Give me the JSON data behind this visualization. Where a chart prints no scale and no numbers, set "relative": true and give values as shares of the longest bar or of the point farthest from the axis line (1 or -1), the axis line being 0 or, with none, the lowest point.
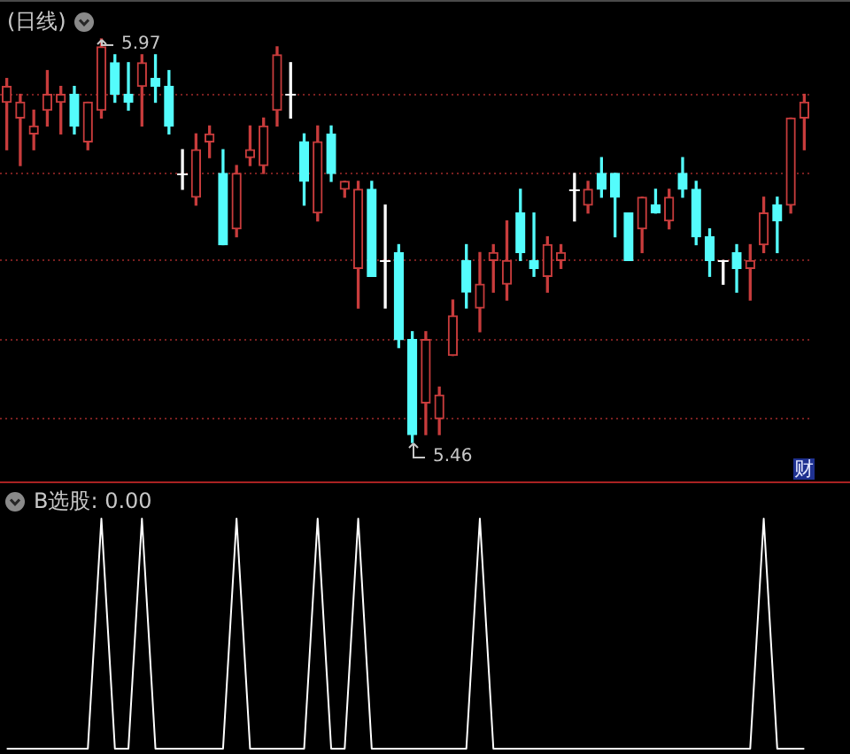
{
  "chart_data": [
    {
      "type": "candlestick",
      "title": "(日线)",
      "categories": [
        null,
        null,
        null,
        null,
        null,
        null,
        null,
        null,
        null,
        null,
        null,
        null,
        null,
        null,
        null,
        null,
        null,
        null,
        null,
        null,
        null,
        null,
        null,
        null,
        null,
        null,
        null,
        null,
        null,
        null,
        null,
        null,
        null,
        null,
        null,
        null,
        null,
        null,
        null,
        null,
        null,
        null,
        null,
        null,
        null,
        null,
        null,
        null,
        null,
        null,
        null,
        null,
        null,
        null,
        null,
        null,
        null,
        null,
        null,
        null
      ],
      "ohlc": [
        [
          5.89,
          5.92,
          5.83,
          5.91
        ],
        [
          5.87,
          5.9,
          5.81,
          5.89
        ],
        [
          5.85,
          5.88,
          5.83,
          5.86
        ],
        [
          5.88,
          5.93,
          5.86,
          5.9
        ],
        [
          5.89,
          5.91,
          5.85,
          5.9
        ],
        [
          5.9,
          5.91,
          5.85,
          5.86
        ],
        [
          5.84,
          5.89,
          5.83,
          5.89
        ],
        [
          5.88,
          5.97,
          5.87,
          5.96
        ],
        [
          5.94,
          5.95,
          5.89,
          5.9
        ],
        [
          5.9,
          5.94,
          5.88,
          5.89
        ],
        [
          5.91,
          5.95,
          5.86,
          5.94
        ],
        [
          5.92,
          5.95,
          5.89,
          5.91
        ],
        [
          5.91,
          5.93,
          5.85,
          5.86
        ],
        [
          5.8,
          5.83,
          5.78,
          5.8
        ],
        [
          5.77,
          5.85,
          5.76,
          5.83
        ],
        [
          5.84,
          5.86,
          5.82,
          5.85
        ],
        [
          5.8,
          5.83,
          5.71,
          5.71
        ],
        [
          5.73,
          5.81,
          5.72,
          5.8
        ],
        [
          5.82,
          5.86,
          5.81,
          5.83
        ],
        [
          5.81,
          5.87,
          5.8,
          5.86
        ],
        [
          5.88,
          5.96,
          5.86,
          5.95
        ],
        [
          5.9,
          5.94,
          5.87,
          5.9
        ],
        [
          5.84,
          5.85,
          5.76,
          5.79
        ],
        [
          5.75,
          5.86,
          5.74,
          5.84
        ],
        [
          5.85,
          5.86,
          5.79,
          5.8
        ],
        [
          5.78,
          5.79,
          5.77,
          5.79
        ],
        [
          5.68,
          5.79,
          5.63,
          5.78
        ],
        [
          5.78,
          5.79,
          5.67,
          5.67
        ],
        [
          5.69,
          5.76,
          5.63,
          5.69
        ],
        [
          5.7,
          5.71,
          5.58,
          5.59
        ],
        [
          5.59,
          5.6,
          5.46,
          5.47
        ],
        [
          5.51,
          5.6,
          5.47,
          5.59
        ],
        [
          5.49,
          5.53,
          5.47,
          5.52
        ],
        [
          5.57,
          5.64,
          5.57,
          5.62
        ],
        [
          5.69,
          5.71,
          5.63,
          5.65
        ],
        [
          5.63,
          5.7,
          5.6,
          5.66
        ],
        [
          5.69,
          5.71,
          5.65,
          5.7
        ],
        [
          5.66,
          5.74,
          5.64,
          5.69
        ],
        [
          5.75,
          5.78,
          5.69,
          5.7
        ],
        [
          5.69,
          5.75,
          5.67,
          5.68
        ],
        [
          5.67,
          5.72,
          5.65,
          5.71
        ],
        [
          5.69,
          5.71,
          5.68,
          5.7
        ],
        [
          5.78,
          5.8,
          5.74,
          5.78
        ],
        [
          5.76,
          5.79,
          5.75,
          5.78
        ],
        [
          5.8,
          5.82,
          5.77,
          5.78
        ],
        [
          5.8,
          5.8,
          5.72,
          5.77
        ],
        [
          5.75,
          5.75,
          5.69,
          5.69
        ],
        [
          5.73,
          5.77,
          5.7,
          5.77
        ],
        [
          5.76,
          5.78,
          5.75,
          5.75
        ],
        [
          5.74,
          5.78,
          5.73,
          5.77
        ],
        [
          5.8,
          5.82,
          5.77,
          5.78
        ],
        [
          5.78,
          5.79,
          5.71,
          5.72
        ],
        [
          5.72,
          5.73,
          5.67,
          5.69
        ],
        [
          5.69,
          5.69,
          5.66,
          5.69
        ],
        [
          5.7,
          5.71,
          5.65,
          5.68
        ],
        [
          5.68,
          5.71,
          5.64,
          5.69
        ],
        [
          5.71,
          5.77,
          5.7,
          5.75
        ],
        [
          5.76,
          5.77,
          5.7,
          5.74
        ],
        [
          5.76,
          5.87,
          5.75,
          5.87
        ],
        [
          5.87,
          5.9,
          5.83,
          5.89
        ]
      ],
      "colors": [
        "#c83c3c",
        "#c83c3c",
        "#c83c3c",
        "#c83c3c",
        "#c83c3c",
        "#54fcfc",
        "#c83c3c",
        "#c83c3c",
        "#54fcfc",
        "#54fcfc",
        "#c83c3c",
        "#54fcfc",
        "#54fcfc",
        "#ffffff",
        "#c83c3c",
        "#c83c3c",
        "#54fcfc",
        "#c83c3c",
        "#c83c3c",
        "#c83c3c",
        "#c83c3c",
        "#ffffff",
        "#54fcfc",
        "#c83c3c",
        "#54fcfc",
        "#c83c3c",
        "#c83c3c",
        "#54fcfc",
        "#ffffff",
        "#54fcfc",
        "#54fcfc",
        "#c83c3c",
        "#c83c3c",
        "#c83c3c",
        "#54fcfc",
        "#c83c3c",
        "#c83c3c",
        "#c83c3c",
        "#54fcfc",
        "#54fcfc",
        "#c83c3c",
        "#c83c3c",
        "#ffffff",
        "#c83c3c",
        "#54fcfc",
        "#54fcfc",
        "#54fcfc",
        "#c83c3c",
        "#54fcfc",
        "#c83c3c",
        "#54fcfc",
        "#54fcfc",
        "#54fcfc",
        "#ffffff",
        "#54fcfc",
        "#c83c3c",
        "#c83c3c",
        "#54fcfc",
        "#c83c3c",
        "#c83c3c"
      ],
      "yticks": [
        {
          "value": 5.9,
          "label": null
        },
        {
          "value": 5.8,
          "label": null
        },
        {
          "value": 5.69,
          "label": null
        },
        {
          "value": 5.59,
          "label": null
        },
        {
          "value": 5.49,
          "label": null
        }
      ],
      "grid": "y",
      "tick_labels": false,
      "annotations": [
        "5.97",
        "5.46",
        "财"
      ]
    },
    {
      "type": "line",
      "title": "B选股: 0.00",
      "categories": [
        null,
        null,
        null,
        null,
        null,
        null,
        null,
        null,
        null,
        null,
        null,
        null,
        null,
        null,
        null,
        null,
        null,
        null,
        null,
        null,
        null,
        null,
        null,
        null,
        null,
        null,
        null,
        null,
        null,
        null,
        null,
        null,
        null,
        null,
        null,
        null,
        null,
        null,
        null,
        null,
        null,
        null,
        null,
        null,
        null,
        null,
        null,
        null,
        null,
        null,
        null,
        null,
        null,
        null,
        null,
        null,
        null,
        null,
        null,
        null
      ],
      "relative": true,
      "series": [
        {
          "color": "#ffffff",
          "values": [
            0,
            0,
            0,
            0,
            0,
            0,
            0,
            1,
            0,
            0,
            1,
            0,
            0,
            0,
            0,
            0,
            0,
            1,
            0,
            0,
            0,
            0,
            0,
            1,
            0,
            0,
            1,
            0,
            0,
            0,
            0,
            0,
            0,
            0,
            0,
            1,
            0,
            0,
            0,
            0,
            0,
            0,
            0,
            0,
            0,
            0,
            0,
            0,
            0,
            0,
            0,
            0,
            0,
            0,
            0,
            0,
            1,
            0,
            0,
            0
          ]
        }
      ],
      "tick_labels": false
    }
  ]
}
